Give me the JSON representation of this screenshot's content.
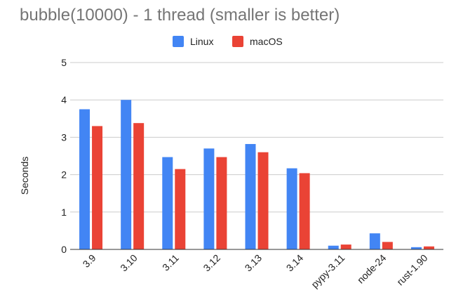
{
  "chart_data": {
    "type": "bar",
    "title": "bubble(10000) - 1 thread (smaller is better)",
    "xlabel": "",
    "ylabel": "Seconds",
    "ylim": [
      0,
      5
    ],
    "yticks": [
      "0",
      "1",
      "2",
      "3",
      "4",
      "5"
    ],
    "categories": [
      "3.9",
      "3.10",
      "3.11",
      "3.12",
      "3.13",
      "3.14",
      "pypy-3.11",
      "node-24",
      "rust-1.90"
    ],
    "series": [
      {
        "name": "Linux",
        "color": "#4285f4",
        "values": [
          3.75,
          4.0,
          2.47,
          2.7,
          2.82,
          2.17,
          0.1,
          0.43,
          0.06
        ]
      },
      {
        "name": "macOS",
        "color": "#ea4335",
        "values": [
          3.3,
          3.38,
          2.15,
          2.47,
          2.6,
          2.04,
          0.13,
          0.2,
          0.08
        ]
      }
    ],
    "grid": true,
    "legend_position": "top"
  }
}
